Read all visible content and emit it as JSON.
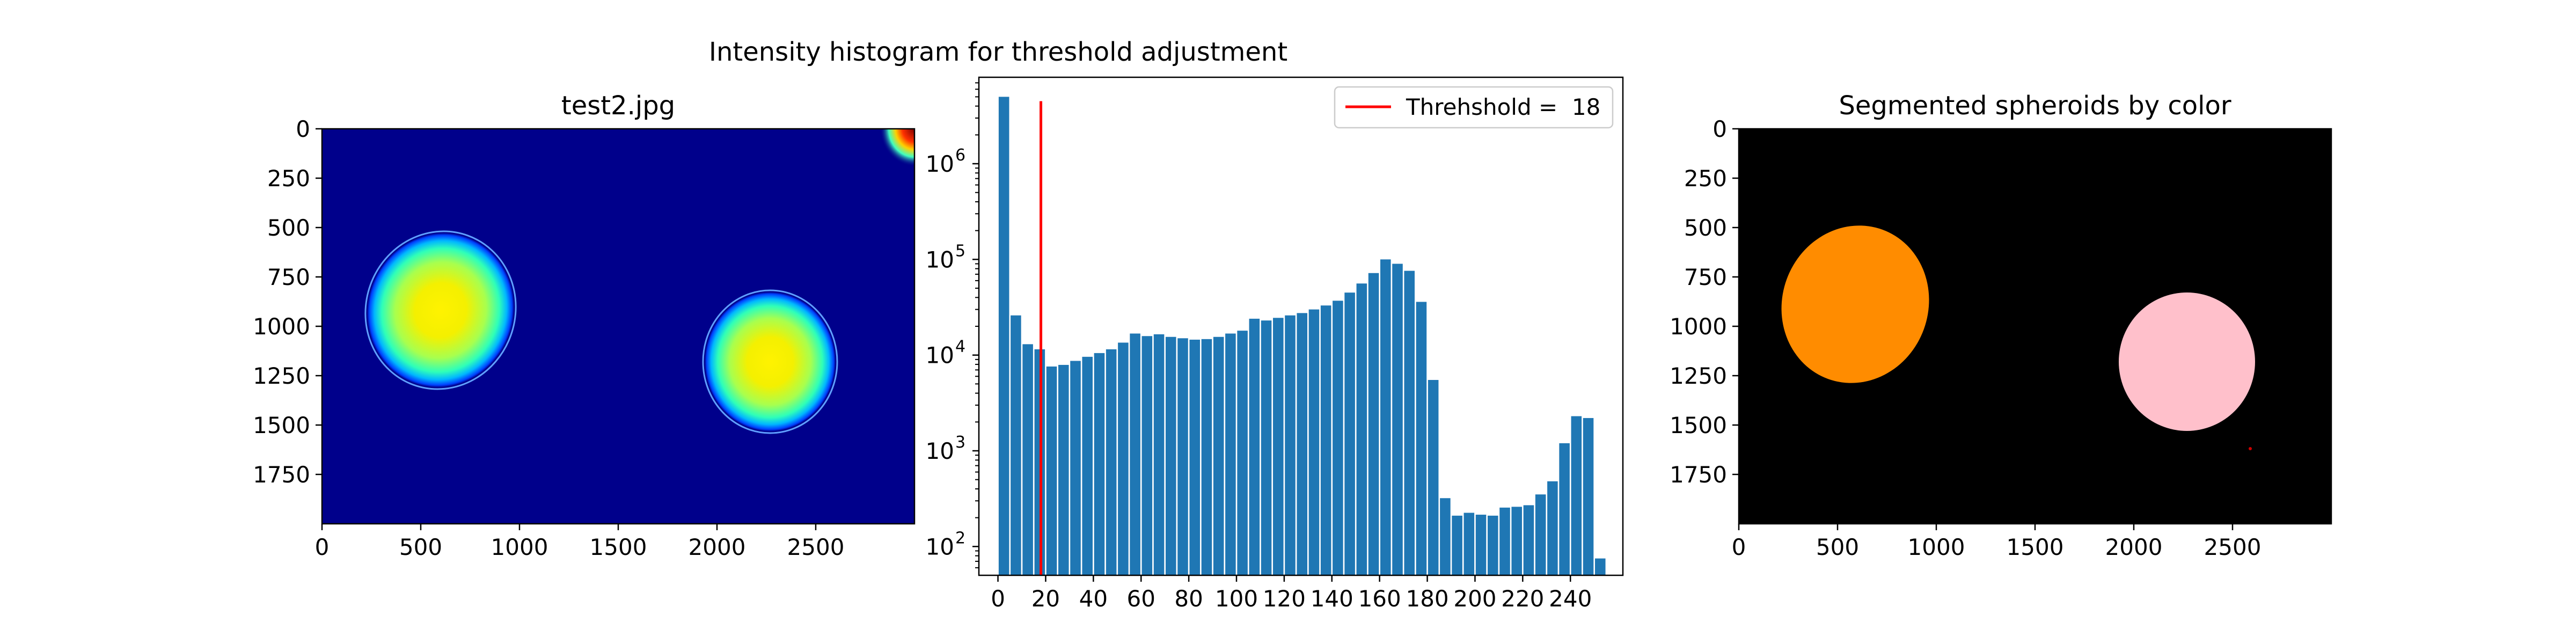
{
  "panels": {
    "left": {
      "title": "test2.jpg"
    },
    "middle": {
      "title": "Intensity histogram for threshold adjustment",
      "legend_label": "Threhshold =  18"
    },
    "right": {
      "title": "Segmented spheroids by color"
    }
  },
  "chart_data": [
    {
      "type": "image",
      "title": "test2.jpg",
      "colormap": "jet",
      "xlim": [
        0,
        3000
      ],
      "ylim": [
        2000,
        0
      ],
      "x_ticks": [
        0,
        500,
        1000,
        1500,
        2000,
        2500
      ],
      "y_ticks": [
        0,
        250,
        500,
        750,
        1000,
        1250,
        1500,
        1750
      ],
      "background_color": "#00008b",
      "objects": [
        {
          "cx": 600,
          "cy": 920,
          "rx": 370,
          "ry": 390,
          "rotation": 20
        },
        {
          "cx": 2270,
          "cy": 1180,
          "rx": 330,
          "ry": 355,
          "rotation": 0
        }
      ]
    },
    {
      "type": "bar",
      "title": "Intensity histogram for threshold adjustment",
      "yscale": "log",
      "ylim": [
        50,
        8000000
      ],
      "xlim": [
        -8,
        262
      ],
      "bar_width": 4.4,
      "x_tick_labels": [
        "0",
        "20",
        "40",
        "60",
        "80",
        "100",
        "120",
        "140",
        "160",
        "180",
        "200",
        "220",
        "240"
      ],
      "x_ticks": [
        0,
        20,
        40,
        60,
        80,
        100,
        120,
        140,
        160,
        180,
        200,
        220,
        240
      ],
      "y_ticks": [
        {
          "value": 100,
          "label": "10",
          "exp": "2"
        },
        {
          "value": 1000,
          "label": "10",
          "exp": "3"
        },
        {
          "value": 10000,
          "label": "10",
          "exp": "4"
        },
        {
          "value": 100000,
          "label": "10",
          "exp": "5"
        },
        {
          "value": 1000000,
          "label": "10",
          "exp": "6"
        }
      ],
      "bar_color": "#1f77b4",
      "x": [
        2.5,
        7.5,
        12.5,
        17.5,
        22.5,
        27.5,
        32.5,
        37.5,
        42.5,
        47.5,
        52.5,
        57.5,
        62.5,
        67.5,
        72.5,
        77.5,
        82.5,
        87.5,
        92.5,
        97.5,
        102.5,
        107.5,
        112.5,
        117.5,
        122.5,
        127.5,
        132.5,
        137.5,
        142.5,
        147.5,
        152.5,
        157.5,
        162.5,
        167.5,
        172.5,
        177.5,
        182.5,
        187.5,
        192.5,
        197.5,
        202.5,
        207.5,
        212.5,
        217.5,
        222.5,
        227.5,
        232.5,
        237.5,
        242.5,
        247.5,
        252.5
      ],
      "values": [
        5000000,
        26000,
        13000,
        11500,
        7600,
        7900,
        8700,
        9600,
        10500,
        11500,
        13500,
        16800,
        15800,
        16500,
        15500,
        15000,
        14500,
        14700,
        15500,
        16800,
        18000,
        24000,
        23000,
        24500,
        26000,
        27500,
        30000,
        33000,
        37000,
        45000,
        56000,
        72000,
        100000,
        90000,
        76000,
        36000,
        5500,
        320,
        210,
        225,
        215,
        210,
        255,
        260,
        270,
        350,
        480,
        1200,
        2300,
        2200,
        75
      ],
      "threshold": {
        "value": 18,
        "label": "Threhshold =  18",
        "color": "#ff0000",
        "y_top": 4500000
      },
      "legend_position": "upper right"
    },
    {
      "type": "image",
      "title": "Segmented spheroids by color",
      "xlim": [
        0,
        3000
      ],
      "ylim": [
        2000,
        0
      ],
      "x_ticks": [
        0,
        500,
        1000,
        1500,
        2000,
        2500
      ],
      "y_ticks": [
        0,
        250,
        500,
        750,
        1000,
        1250,
        1500,
        1750
      ],
      "background_color": "#000000",
      "objects": [
        {
          "cx": 590,
          "cy": 890,
          "rx": 370,
          "ry": 400,
          "rotation": 20,
          "color": "#ff8c00"
        },
        {
          "cx": 2270,
          "cy": 1180,
          "rx": 345,
          "ry": 350,
          "rotation": 0,
          "color": "#ffc0cb"
        }
      ]
    }
  ]
}
